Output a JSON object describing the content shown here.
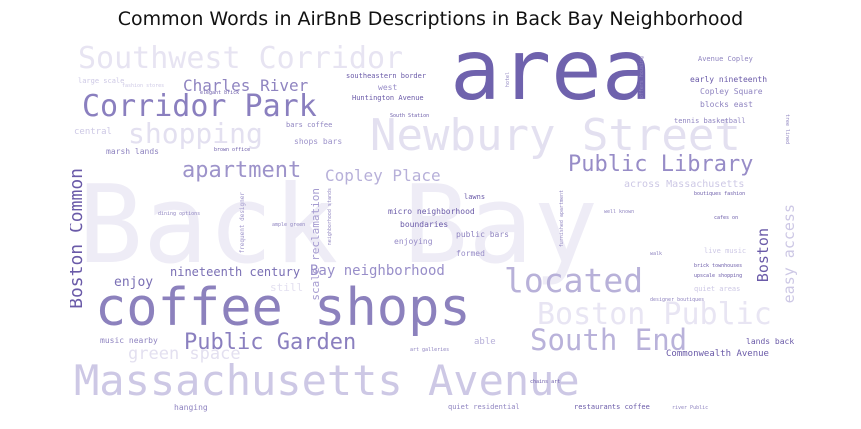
{
  "title": "Common Words in AirBnB Descriptions in Back Bay Neighborhood",
  "colors": {
    "dark": "#6a5aa8",
    "mid": "#8f84c0",
    "light": "#c9c3e2",
    "faint": "#e9e6f4"
  },
  "words": {
    "back_bay": "Back Bay",
    "massachusetts_avenue": "Massachusetts Avenue",
    "area": "area",
    "coffee_shops": "coffee shops",
    "newbury_street": "Newbury Street",
    "southwest_corridor": "Southwest Corridor",
    "corridor_park": "Corridor Park",
    "shopping": "shopping",
    "charles_river": "Charles River",
    "apartment": "apartment",
    "public_library": "Public Library",
    "copley_place": "Copley Place",
    "located": "located",
    "boston_public": "Boston Public",
    "south_end": "South End",
    "public_garden": "Public Garden",
    "boston_common": "Boston Common",
    "bay_neighborhood": "Bay neighborhood",
    "nineteenth_century": "nineteenth century",
    "enjoy": "enjoy",
    "green_space": "green space",
    "boston": "Boston",
    "easy_access": "easy access",
    "across_massachusetts": "across Massachusetts",
    "commonwealth_avenue": "Commonwealth Avenue",
    "huntington_avenue": "Huntington Avenue",
    "southeastern_border": "southeastern border",
    "early_nineteenth": "early nineteenth",
    "copley_square": "Copley Square",
    "blocks_east": "blocks east",
    "avenue_copley": "Avenue Copley",
    "tennis_basketball": "tennis basketball",
    "south_station": "South Station",
    "bars_coffee": "bars coffee",
    "shops_bars": "shops bars",
    "central": "central",
    "marsh_lands": "marsh lands",
    "brown_office": "brown office",
    "west": "west",
    "elegant_brick": "elegant brick",
    "lawns": "lawns",
    "micro_neighborhood": "micro neighborhood",
    "boundaries": "boundaries",
    "public_bars": "public bars",
    "enjoying": "enjoying",
    "formed": "formed",
    "scale_reclamation": "scale reclamation",
    "neighborhood_stands": "neighborhood stands",
    "frequent_designer": "frequent designer",
    "dining_options": "dining options",
    "ample_green": "ample green",
    "music_nearby": "music nearby",
    "able": "able",
    "art_galleries": "art galleries",
    "designer_boutiques": "designer boutiques",
    "lands_back": "lands back",
    "quiet_residential": "quiet residential",
    "restaurants_coffee": "restaurants coffee",
    "river_public": "river Public",
    "hanging": "hanging",
    "chains_art": "chains art",
    "live_music": "live music",
    "brick_townhouses": "brick townhouses",
    "upscale_shopping": "upscale shopping",
    "quiet_areas": "quiet areas",
    "well_known": "well known",
    "cafes_on": "cafes on",
    "boutiques_fashion": "boutiques fashion",
    "walk": "walk",
    "still": "still",
    "tree_lined": "tree lined",
    "large_scale": "large scale",
    "fashion_stores": "fashion stores",
    "offers_housing": "offers housing",
    "furnished_apartment": "furnished apartment",
    "hotel": "hotel"
  }
}
